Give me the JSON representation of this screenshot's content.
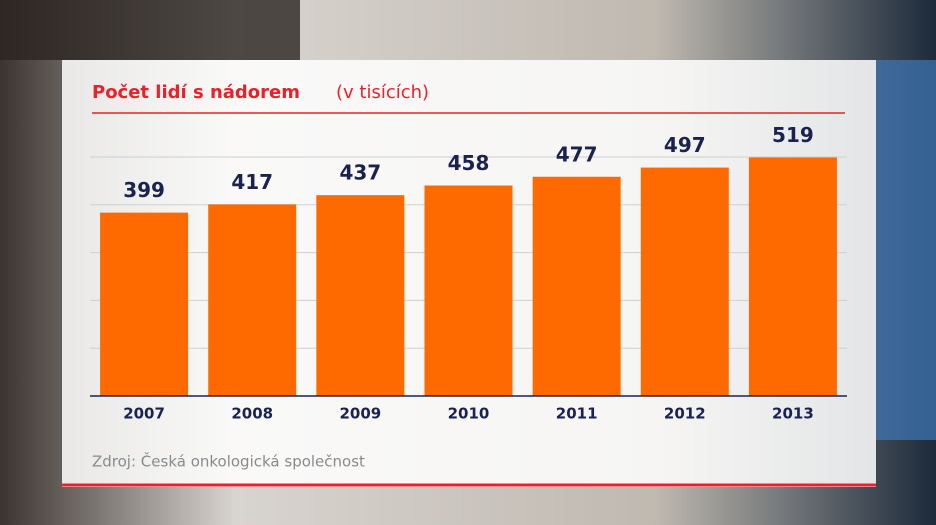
{
  "chart_data": {
    "type": "bar",
    "title": "Počet lidí s nádorem",
    "subtitle": "(v tisících)",
    "source": "Zdroj: Česká onkologická společnost",
    "categories": [
      "2007",
      "2008",
      "2009",
      "2010",
      "2011",
      "2012",
      "2013"
    ],
    "values": [
      399,
      417,
      437,
      458,
      477,
      497,
      519
    ],
    "color": "#ff6a00",
    "ylim": [
      0,
      520
    ],
    "grid": true
  }
}
